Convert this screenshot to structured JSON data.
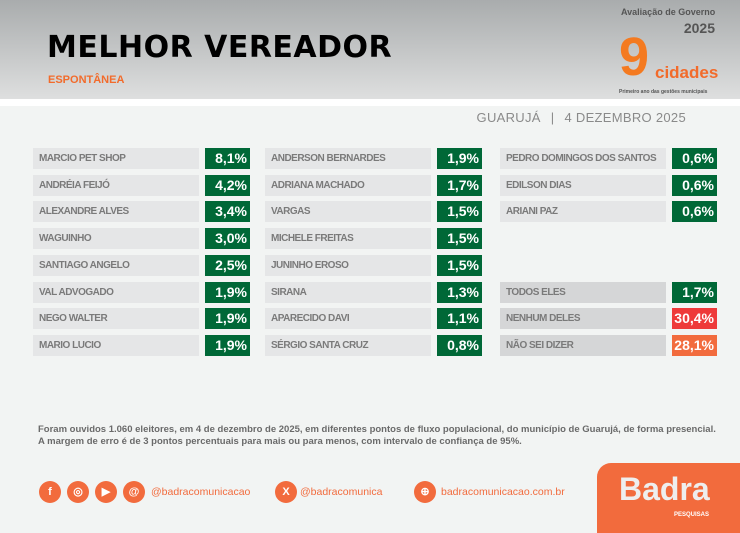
{
  "header": {
    "title": "MELHOR VEREADOR",
    "subtitle": "ESPONTÂNEA",
    "place": "GUARUJÁ",
    "separator": "|",
    "date": "4 DEZEMBRO 2025"
  },
  "logo": {
    "line1": "Avaliação de Governo",
    "year": "2025",
    "number": "9",
    "word": "cidades",
    "tagline": "Primeiro ano das gestões municipais"
  },
  "columns": [
    [
      {
        "name": "MARCIO PET SHOP",
        "value": "8,1%"
      },
      {
        "name": "ANDRÉIA FEIJÓ",
        "value": "4,2%"
      },
      {
        "name": "ALEXANDRE ALVES",
        "value": "3,4%"
      },
      {
        "name": "WAGUINHO",
        "value": "3,0%"
      },
      {
        "name": "SANTIAGO ANGELO",
        "value": "2,5%"
      },
      {
        "name": "VAL ADVOGADO",
        "value": "1,9%"
      },
      {
        "name": "NEGO WALTER",
        "value": "1,9%"
      },
      {
        "name": "MARIO LUCIO",
        "value": "1,9%"
      }
    ],
    [
      {
        "name": "ANDERSON BERNARDES",
        "value": "1,9%"
      },
      {
        "name": "ADRIANA MACHADO",
        "value": "1,7%"
      },
      {
        "name": "VARGAS",
        "value": "1,5%"
      },
      {
        "name": "MICHELE FREITAS",
        "value": "1,5%"
      },
      {
        "name": "JUNINHO EROSO",
        "value": "1,5%"
      },
      {
        "name": "SIRANA",
        "value": "1,3%"
      },
      {
        "name": "APARECIDO DAVI",
        "value": "1,1%"
      },
      {
        "name": "SÉRGIO SANTA CRUZ",
        "value": "0,8%"
      }
    ],
    [
      {
        "name": "PEDRO DOMINGOS DOS SANTOS",
        "value": "0,6%"
      },
      {
        "name": "EDILSON DIAS",
        "value": "0,6%"
      },
      {
        "name": "ARIANI PAZ",
        "value": "0,6%"
      }
    ]
  ],
  "summary": [
    {
      "name": "TODOS ELES",
      "value": "1,7%",
      "color": "#006837"
    },
    {
      "name": "NENHUM DELES",
      "value": "30,4%",
      "color": "#ee3a3a"
    },
    {
      "name": "NÃO SEI DIZER",
      "value": "28,1%",
      "color": "#f26b3d"
    }
  ],
  "note": {
    "line1": "Foram ouvidos 1.060 eleitores, em 4 de dezembro de 2025, em diferentes pontos de fluxo populacional, do município de Guarujá, de forma presencial.",
    "line2": "A margem de erro é de 3 pontos percentuais para mais ou para menos, com intervalo de confiança de 95%."
  },
  "footer": {
    "handle1": "@badracomunicacao",
    "handle2": "@badracomunica",
    "site": "badracomunicacao.com.br",
    "brand": "Badra",
    "brand_sub": "PESQUISAS"
  }
}
